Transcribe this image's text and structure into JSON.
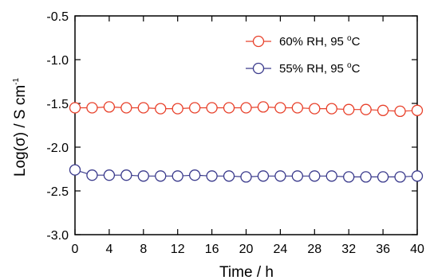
{
  "chart_data": {
    "type": "line",
    "xlabel": "Time / h",
    "ylabel_main": "Log(σ) / S cm",
    "ylabel_sup": "-1",
    "xlim": [
      0,
      40
    ],
    "ylim": [
      -3.0,
      -0.5
    ],
    "xticks": [
      0,
      4,
      8,
      12,
      16,
      20,
      24,
      28,
      32,
      36,
      40
    ],
    "xtick_labels": [
      "0",
      "4",
      "8",
      "12",
      "16",
      "20",
      "24",
      "28",
      "32",
      "36",
      "40"
    ],
    "yticks": [
      -0.5,
      -1.0,
      -1.5,
      -2.0,
      -2.5,
      -3.0
    ],
    "ytick_labels": [
      "-0.5",
      "-1.0",
      "-1.5",
      "-2.0",
      "-2.5",
      "-3.0"
    ],
    "grid": false,
    "legend_position": "top-right",
    "series": [
      {
        "name_main": "60% RH, 95 ",
        "name_sup": "o",
        "name_end": "C",
        "color": "#e8402a",
        "x": [
          0,
          2,
          4,
          6,
          8,
          10,
          12,
          14,
          16,
          18,
          20,
          22,
          24,
          26,
          28,
          30,
          32,
          34,
          36,
          38,
          40
        ],
        "y": [
          -1.55,
          -1.55,
          -1.54,
          -1.55,
          -1.55,
          -1.56,
          -1.56,
          -1.55,
          -1.55,
          -1.55,
          -1.55,
          -1.54,
          -1.55,
          -1.55,
          -1.56,
          -1.56,
          -1.57,
          -1.57,
          -1.58,
          -1.59,
          -1.58
        ]
      },
      {
        "name_main": "55% RH, 95 ",
        "name_sup": "o",
        "name_end": "C",
        "color": "#3a3a8c",
        "x": [
          0,
          2,
          4,
          6,
          8,
          10,
          12,
          14,
          16,
          18,
          20,
          22,
          24,
          26,
          28,
          30,
          32,
          34,
          36,
          38,
          40
        ],
        "y": [
          -2.26,
          -2.32,
          -2.32,
          -2.32,
          -2.33,
          -2.33,
          -2.33,
          -2.32,
          -2.33,
          -2.33,
          -2.34,
          -2.33,
          -2.33,
          -2.33,
          -2.33,
          -2.33,
          -2.34,
          -2.34,
          -2.34,
          -2.34,
          -2.33
        ]
      }
    ]
  }
}
